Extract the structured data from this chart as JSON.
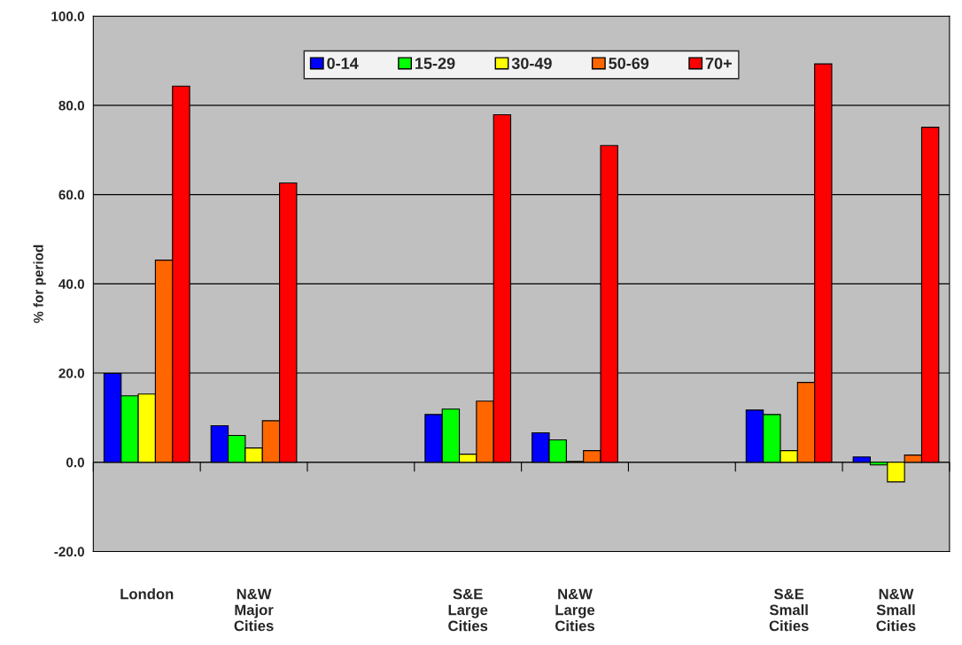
{
  "chart_data": {
    "type": "bar",
    "ylabel": "% for period",
    "categories": [
      "London",
      "N&W\nMajor\nCities",
      null,
      "S&E\nLarge\nCities",
      "N&W\nLarge\nCities",
      null,
      "S&E\nSmall\nCities",
      "N&W\nSmall\nCities"
    ],
    "series": [
      {
        "name": "0-14",
        "color": "#0000ff",
        "values": [
          19.9,
          8.2,
          null,
          10.7,
          6.6,
          null,
          11.7,
          1.2
        ]
      },
      {
        "name": "15-29",
        "color": "#00ff00",
        "values": [
          14.9,
          6.0,
          null,
          11.9,
          5.0,
          null,
          10.7,
          -0.6
        ]
      },
      {
        "name": "30-49",
        "color": "#ffff00",
        "values": [
          15.3,
          3.2,
          null,
          1.8,
          0.2,
          null,
          2.6,
          -4.4
        ]
      },
      {
        "name": "50-69",
        "color": "#ff6600",
        "values": [
          45.3,
          9.3,
          null,
          13.7,
          2.6,
          null,
          17.9,
          1.6
        ]
      },
      {
        "name": "70+",
        "color": "#ff0000",
        "values": [
          84.3,
          62.6,
          null,
          77.9,
          71.0,
          null,
          89.3,
          75.1
        ]
      }
    ],
    "ylim": [
      -20,
      100
    ],
    "yticks": [
      {
        "value": -20,
        "label": "-20.0"
      },
      {
        "value": 0,
        "label": "0.0"
      },
      {
        "value": 20,
        "label": "20.0"
      },
      {
        "value": 40,
        "label": "40.0"
      },
      {
        "value": 60,
        "label": "60.0"
      },
      {
        "value": 80,
        "label": "80.0"
      },
      {
        "value": 100,
        "label": "100.0"
      }
    ],
    "grid": "y",
    "legend": "top"
  }
}
